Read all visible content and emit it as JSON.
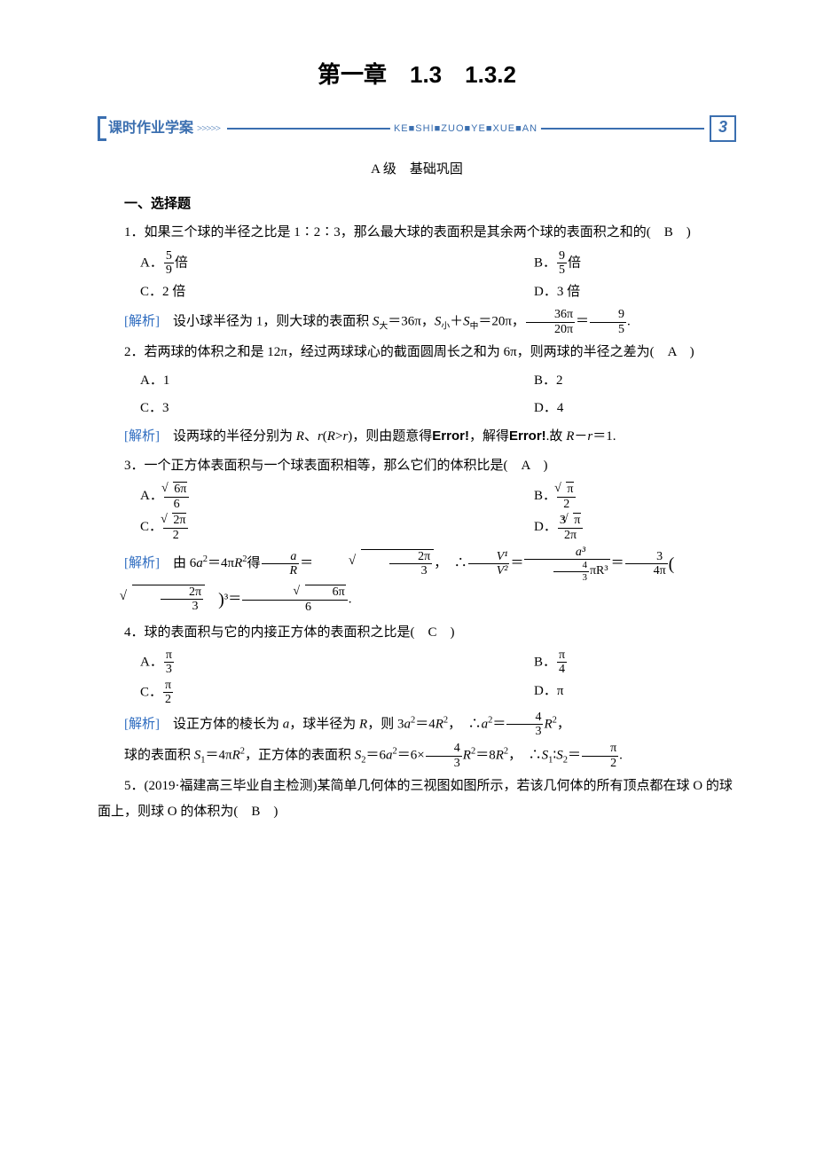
{
  "chapter": {
    "title": "第一章　1.3　1.3.2"
  },
  "banner": {
    "label": "课时作业学案",
    "chevrons": ">>>>>",
    "pinyin_parts": [
      "KE",
      "SHI",
      "ZUO",
      "YE",
      "XUE",
      "AN"
    ],
    "number": "3",
    "border_color": "#3b6fb0"
  },
  "level": {
    "label": "A 级　基础巩固"
  },
  "section1": {
    "heading": "一、选择题"
  },
  "q1": {
    "stem": "1．如果三个球的半径之比是 1∶2∶3，那么最大球的表面积是其余两个球的表面积之和的(　B　)",
    "optA_pre": "A．",
    "optA_num": "5",
    "optA_den": "9",
    "optA_post": "倍",
    "optB_pre": "B．",
    "optB_num": "9",
    "optB_den": "5",
    "optB_post": "倍",
    "optC": "C．2 倍",
    "optD": "D．3 倍",
    "ana_label": "[解析]",
    "ana_t1": "　设小球半径为 1，则大球的表面积 ",
    "ana_t2": "＝36π，",
    "ana_t3": "＋",
    "ana_t4": "＝20π，",
    "ana_frac_num": "36π",
    "ana_frac_den": "20π",
    "ana_eq": "＝",
    "ana_r_num": "9",
    "ana_r_den": "5",
    "ana_dot": "."
  },
  "q2": {
    "stem": "2．若两球的体积之和是 12π，经过两球球心的截面圆周长之和为 6π，则两球的半径之差为(　A　)",
    "optA": "A．1",
    "optB": "B．2",
    "optC": "C．3",
    "optD": "D．4",
    "ana_label": "[解析]",
    "ana_text_a": "　设两球的半径分别为 ",
    "ana_text_b": "、",
    "ana_text_c": "(",
    "ana_text_d": ">",
    "ana_text_e": ")，则由题意得",
    "err1": "Error!",
    "ana_text_f": "，解得",
    "err2": "Error!",
    "ana_text_g": ".故 ",
    "ana_text_h": "－",
    "ana_text_i": "＝1."
  },
  "q3": {
    "stem": "3．一个正方体表面积与一个球表面积相等，那么它们的体积比是(　A　)",
    "A_pre": "A．",
    "A_num_rad": "6π",
    "A_den": "6",
    "B_pre": "B．",
    "B_num_rad": "π",
    "B_den": "2",
    "C_pre": "C．",
    "C_num_rad": "2π",
    "C_den": "2",
    "D_pre": "D．",
    "D_num_pre": "3",
    "D_num_rad": "π",
    "D_den": "2π",
    "ana_label": "[解析]",
    "ana_t1": "　由 6",
    "ana_t2": "＝4π",
    "ana_t3": "得",
    "ana_frac1_num": "a",
    "ana_frac1_den": "R",
    "ana_eq1": "＝　",
    "ana_rad1_num": "2π",
    "ana_rad1_den": "3",
    "ana_t4": "，　∴",
    "ana_frac2_num": "V¹",
    "ana_frac2_den": "V²",
    "ana_eq2": "＝",
    "ana_frac3_num": "a³",
    "ana_frac3_den_num": "4",
    "ana_frac3_den_den": "3",
    "ana_frac3_den_post": "πR³",
    "ana_eq3": "＝",
    "ana_frac4_num": "3",
    "ana_frac4_den": "4π",
    "ana_rad2_num": "2π",
    "ana_rad2_den": "3",
    "ana_pow": "³＝",
    "ana_res_num_rad": "6π",
    "ana_res_den": "6",
    "ana_dot": "."
  },
  "q4": {
    "stem": "4．球的表面积与它的内接正方体的表面积之比是(　C　)",
    "A_pre": "A．",
    "A_num": "π",
    "A_den": "3",
    "B_pre": "B．",
    "B_num": "π",
    "B_den": "4",
    "C_pre": "C．",
    "C_num": "π",
    "C_den": "2",
    "D": "D．π",
    "ana_label": "[解析]",
    "ana_l1a": "　设正方体的棱长为 ",
    "ana_l1b": "，球半径为 ",
    "ana_l1c": "，则 3",
    "ana_l1d": "＝4",
    "ana_l1e": "，　∴",
    "ana_l1f": "＝",
    "ana_f1_num": "4",
    "ana_f1_den": "3",
    "ana_l1g": "，",
    "ana_l2a": "球的表面积 ",
    "ana_l2b": "＝4π",
    "ana_l2c": "，正方体的表面积 ",
    "ana_l2d": "＝6",
    "ana_l2e": "＝6×",
    "ana_f2_num": "4",
    "ana_f2_den": "3",
    "ana_l2f": "＝8",
    "ana_l2g": "，　∴",
    "ana_l2h": "∶",
    "ana_l2i": "＝",
    "ana_f3_num": "π",
    "ana_f3_den": "2",
    "ana_l2j": "."
  },
  "q5": {
    "stem": "5．(2019·福建高三毕业自主检测)某简单几何体的三视图如图所示，若该几何体的所有顶点都在球 O 的球面上，则球 O 的体积为(　B　)"
  },
  "colors": {
    "text": "#000000",
    "analysis": "#2e6cc0",
    "banner": "#3b6fb0",
    "background": "#ffffff"
  }
}
